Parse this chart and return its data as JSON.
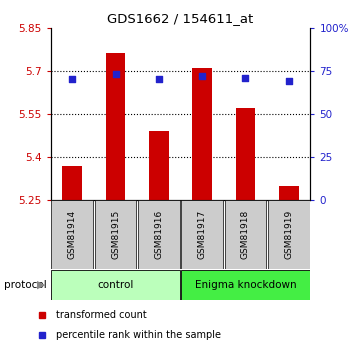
{
  "title": "GDS1662 / 154611_at",
  "samples": [
    "GSM81914",
    "GSM81915",
    "GSM81916",
    "GSM81917",
    "GSM81918",
    "GSM81919"
  ],
  "bar_values": [
    5.37,
    5.76,
    5.49,
    5.71,
    5.57,
    5.3
  ],
  "percentile_values": [
    70,
    73,
    70,
    72,
    71,
    69
  ],
  "y_min": 5.25,
  "y_max": 5.85,
  "y_ticks": [
    5.25,
    5.4,
    5.55,
    5.7,
    5.85
  ],
  "y_tick_labels": [
    "5.25",
    "5.4",
    "5.55",
    "5.7",
    "5.85"
  ],
  "right_y_ticks": [
    0,
    25,
    50,
    75,
    100
  ],
  "right_y_tick_labels": [
    "0",
    "25",
    "50",
    "75",
    "100%"
  ],
  "grid_lines": [
    5.4,
    5.55,
    5.7
  ],
  "bar_color": "#cc0000",
  "square_color": "#2222cc",
  "protocol_groups": [
    {
      "label": "control",
      "start": 0,
      "end": 3,
      "color": "#bbffbb"
    },
    {
      "label": "Enigma knockdown",
      "start": 3,
      "end": 6,
      "color": "#44ee44"
    }
  ],
  "legend_bar_label": "transformed count",
  "legend_square_label": "percentile rank within the sample",
  "protocol_label": "protocol",
  "sample_box_color": "#cccccc",
  "tick_label_color_left": "#cc0000",
  "tick_label_color_right": "#2222cc"
}
